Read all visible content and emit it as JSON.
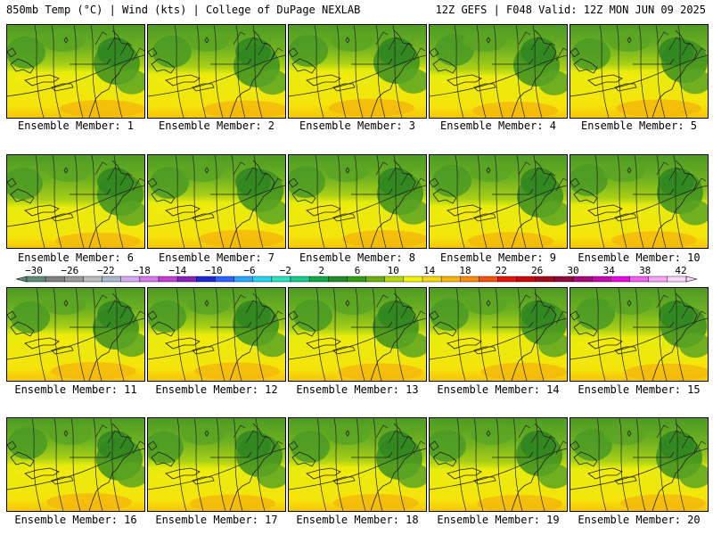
{
  "header": {
    "left": "850mb Temp (°C) | Wind (kts) | College of DuPage NEXLAB",
    "right": "12Z GEFS | F048 Valid: 12Z MON JUN 09 2025"
  },
  "member_label": "Ensemble Member:",
  "members": [
    {
      "number": "1",
      "warmth": 0.62
    },
    {
      "number": "2",
      "warmth": 0.58
    },
    {
      "number": "3",
      "warmth": 0.7
    },
    {
      "number": "4",
      "warmth": 0.5
    },
    {
      "number": "5",
      "warmth": 0.66
    },
    {
      "number": "6",
      "warmth": 0.46
    },
    {
      "number": "7",
      "warmth": 0.64
    },
    {
      "number": "8",
      "warmth": 0.62
    },
    {
      "number": "9",
      "warmth": 0.48
    },
    {
      "number": "10",
      "warmth": 0.54
    },
    {
      "number": "11",
      "warmth": 0.68
    },
    {
      "number": "12",
      "warmth": 0.66
    },
    {
      "number": "13",
      "warmth": 0.6
    },
    {
      "number": "14",
      "warmth": 0.64
    },
    {
      "number": "15",
      "warmth": 0.58
    },
    {
      "number": "16",
      "warmth": 0.62
    },
    {
      "number": "17",
      "warmth": 0.52
    },
    {
      "number": "18",
      "warmth": 0.56
    },
    {
      "number": "19",
      "warmth": 0.5
    },
    {
      "number": "20",
      "warmth": 0.54
    }
  ],
  "colorbar": {
    "tick_labels": [
      "−30",
      "−26",
      "−22",
      "−18",
      "−14",
      "−10",
      "−6",
      "−2",
      "2",
      "6",
      "10",
      "14",
      "18",
      "22",
      "26",
      "30",
      "34",
      "38",
      "42"
    ],
    "colors": [
      "#5f8a74",
      "#808080",
      "#9a9a9a",
      "#bcbcbc",
      "#a9b8cc",
      "#d6a8f0",
      "#d877e8",
      "#c23ed0",
      "#8a21b8",
      "#1c2ad0",
      "#2b63ff",
      "#2aa7ff",
      "#28d3ef",
      "#2de0c0",
      "#17c98c",
      "#10a84a",
      "#1f8e2a",
      "#2f9e12",
      "#6cb00f",
      "#b7d90c",
      "#f4f40a",
      "#f6d80a",
      "#f7b50a",
      "#f78e0a",
      "#f0530a",
      "#e2150a",
      "#c8080a",
      "#a20a1a",
      "#8e0a3c",
      "#a50a78",
      "#c20ab0",
      "#e40ae0",
      "#f05ef0",
      "#f7a6f7",
      "#fbd6fb"
    ]
  }
}
